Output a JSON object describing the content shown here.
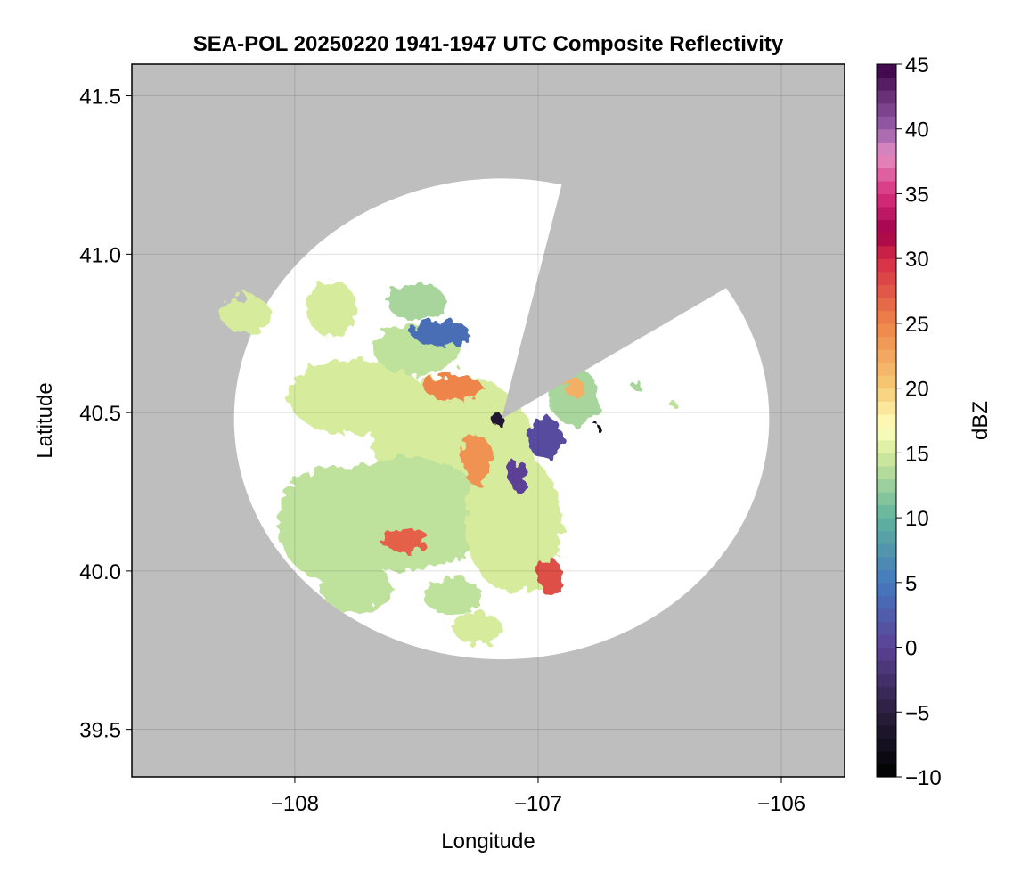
{
  "chart_data": {
    "type": "heatmap",
    "title": "SEA-POL 20250220 1941-1947 UTC Composite Reflectivity",
    "xlabel": "Longitude",
    "ylabel": "Latitude",
    "xlim": [
      -108.67,
      -105.74
    ],
    "ylim": [
      39.35,
      41.6
    ],
    "x_ticks": [
      -108,
      -107,
      -106
    ],
    "y_ticks": [
      39.5,
      40.0,
      40.5,
      41.0,
      41.5
    ],
    "x_tick_labels": [
      "−108",
      "−107",
      "−106"
    ],
    "y_tick_labels": [
      "39.5",
      "40.0",
      "40.5",
      "41.0",
      "41.5"
    ],
    "grid": true,
    "background_color": "#bebebe",
    "radar": {
      "center_lon": -107.15,
      "center_lat": 40.48,
      "range_deg": 1.1,
      "blocked_sector_bearings_deg": [
        [
          13,
          57
        ]
      ]
    },
    "echo_regions": [
      {
        "lon": -107.35,
        "lat": 40.4,
        "rx": 0.33,
        "ry": 0.22,
        "dbz": 15
      },
      {
        "lon": -107.55,
        "lat": 40.18,
        "rx": 0.35,
        "ry": 0.18,
        "dbz": 14
      },
      {
        "lon": -107.75,
        "lat": 40.55,
        "rx": 0.28,
        "ry": 0.12,
        "dbz": 15
      },
      {
        "lon": -107.1,
        "lat": 40.15,
        "rx": 0.2,
        "ry": 0.22,
        "dbz": 15
      },
      {
        "lon": -107.85,
        "lat": 40.15,
        "rx": 0.22,
        "ry": 0.18,
        "dbz": 14
      },
      {
        "lon": -107.5,
        "lat": 40.7,
        "rx": 0.18,
        "ry": 0.08,
        "dbz": 14
      },
      {
        "lon": -107.5,
        "lat": 40.85,
        "rx": 0.12,
        "ry": 0.06,
        "dbz": 13
      },
      {
        "lon": -107.85,
        "lat": 40.83,
        "rx": 0.1,
        "ry": 0.09,
        "dbz": 15
      },
      {
        "lon": -108.2,
        "lat": 40.81,
        "rx": 0.1,
        "ry": 0.06,
        "dbz": 15
      },
      {
        "lon": -107.75,
        "lat": 39.95,
        "rx": 0.15,
        "ry": 0.08,
        "dbz": 14
      },
      {
        "lon": -107.35,
        "lat": 39.92,
        "rx": 0.12,
        "ry": 0.06,
        "dbz": 14
      },
      {
        "lon": -107.25,
        "lat": 39.82,
        "rx": 0.1,
        "ry": 0.05,
        "dbz": 15
      },
      {
        "lon": -106.85,
        "lat": 40.55,
        "rx": 0.1,
        "ry": 0.09,
        "dbz": 13
      },
      {
        "lon": -107.4,
        "lat": 40.75,
        "rx": 0.12,
        "ry": 0.04,
        "dbz": 4
      },
      {
        "lon": -107.35,
        "lat": 40.58,
        "rx": 0.12,
        "ry": 0.04,
        "dbz": 25
      },
      {
        "lon": -107.55,
        "lat": 40.1,
        "rx": 0.1,
        "ry": 0.04,
        "dbz": 27
      },
      {
        "lon": -106.95,
        "lat": 39.98,
        "rx": 0.05,
        "ry": 0.06,
        "dbz": 28
      },
      {
        "lon": -107.25,
        "lat": 40.35,
        "rx": 0.06,
        "ry": 0.08,
        "dbz": 24
      },
      {
        "lon": -106.97,
        "lat": 40.42,
        "rx": 0.07,
        "ry": 0.07,
        "dbz": 1
      },
      {
        "lon": -107.08,
        "lat": 40.3,
        "rx": 0.04,
        "ry": 0.05,
        "dbz": 0
      },
      {
        "lon": -107.17,
        "lat": 40.48,
        "rx": 0.025,
        "ry": 0.02,
        "dbz": -6
      },
      {
        "lon": -106.75,
        "lat": 40.45,
        "rx": 0.012,
        "ry": 0.01,
        "dbz": -8
      },
      {
        "lon": -106.85,
        "lat": 40.58,
        "rx": 0.04,
        "ry": 0.03,
        "dbz": 22
      },
      {
        "lon": -106.6,
        "lat": 40.59,
        "rx": 0.02,
        "ry": 0.015,
        "dbz": 13
      },
      {
        "lon": -106.45,
        "lat": 40.53,
        "rx": 0.015,
        "ry": 0.01,
        "dbz": 14
      }
    ],
    "colorbar": {
      "label": "dBZ",
      "min": -10,
      "max": 45,
      "step": 1,
      "ticks": [
        -10,
        -5,
        0,
        5,
        10,
        15,
        20,
        25,
        30,
        35,
        40,
        45
      ],
      "tick_labels": [
        "−10",
        "−5",
        "0",
        "5",
        "10",
        "15",
        "20",
        "25",
        "30",
        "35",
        "40",
        "45"
      ],
      "colormap": [
        [
          -10,
          "#000000"
        ],
        [
          -5,
          "#2a1f3d"
        ],
        [
          0,
          "#5c4196"
        ],
        [
          5,
          "#4479be"
        ],
        [
          10,
          "#60b39d"
        ],
        [
          15,
          "#d6ec9c"
        ],
        [
          17,
          "#ffffbe"
        ],
        [
          20,
          "#f6cc77"
        ],
        [
          25,
          "#ee8448"
        ],
        [
          30,
          "#d42c47"
        ],
        [
          32,
          "#a1004a"
        ],
        [
          35,
          "#d8307e"
        ],
        [
          38,
          "#e690c4"
        ],
        [
          40,
          "#9a5fab"
        ],
        [
          45,
          "#3a0045"
        ]
      ]
    }
  }
}
